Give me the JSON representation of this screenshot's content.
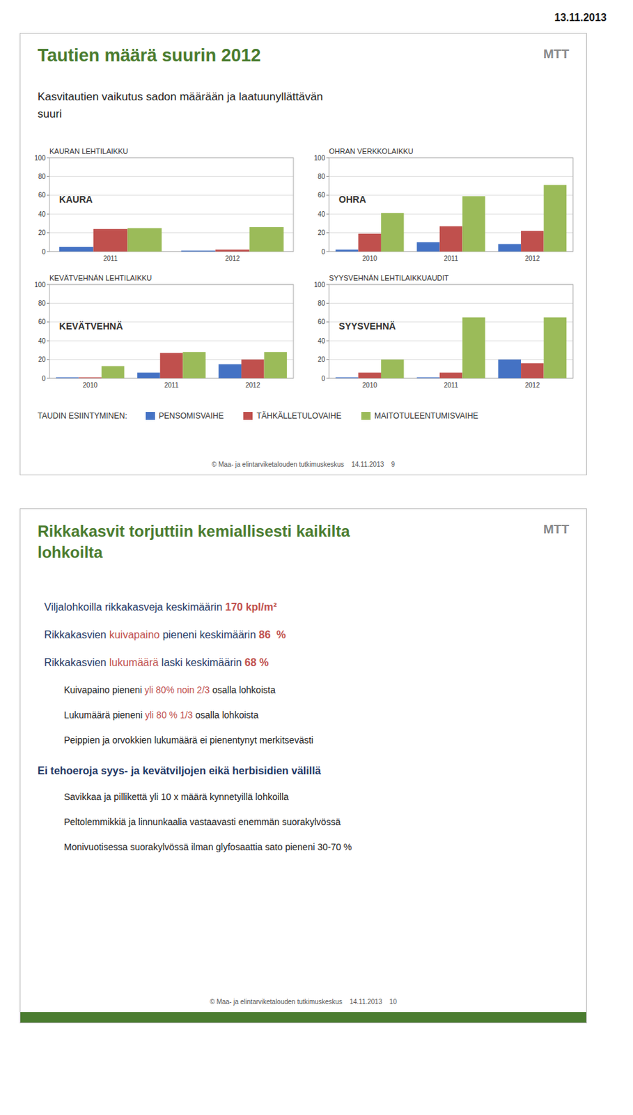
{
  "date": "13.11.2013",
  "slides": [
    {
      "logo": "MTT",
      "title": [
        "Tautien määrä suurin 2012"
      ],
      "subtitle": [
        "Kasvitautien vaikutus sadon määrään ja laatuunyllättävän",
        "suuri"
      ],
      "legend_title": "TAUDIN ESIINTYMINEN:",
      "footer": "© Maa- ja elintarviketalouden tutkimuskeskus    14.11.2013    9",
      "color": "#4a7c2f"
    },
    {
      "logo": "MTT",
      "title": [
        "Rikkakasvit torjuttiin kemiallisesti kaikilta",
        "lohkoilta"
      ],
      "bullets": [
        {
          "level": 1,
          "parts": [
            {
              "text": "Viljalohkoilla rikkakasveja keskimäärin ",
              "color": "#1f3864"
            },
            {
              "text": "170 kpl/m²",
              "color": "#c0504d",
              "bold": true
            }
          ]
        },
        {
          "level": 1,
          "parts": [
            {
              "text": "Rikkakasvien ",
              "color": "#1f3864"
            },
            {
              "text": "kuivapaino",
              "color": "#c0504d"
            },
            {
              "text": " pieneni keskimäärin ",
              "color": "#1f3864"
            },
            {
              "text": "86  %",
              "color": "#c0504d",
              "bold": true
            }
          ]
        },
        {
          "level": 1,
          "parts": [
            {
              "text": "Rikkakasvien ",
              "color": "#1f3864"
            },
            {
              "text": "lukumäärä",
              "color": "#c0504d"
            },
            {
              "text": " laski keskimäärin ",
              "color": "#1f3864"
            },
            {
              "text": "68 %",
              "color": "#c0504d",
              "bold": true
            }
          ]
        },
        {
          "level": 2,
          "parts": [
            {
              "text": "Kuivapaino pieneni ",
              "color": "#222222"
            },
            {
              "text": "yli 80% noin 2/3",
              "color": "#c0504d"
            },
            {
              "text": " osalla lohkoista",
              "color": "#222222"
            }
          ]
        },
        {
          "level": 2,
          "parts": [
            {
              "text": "Lukumäärä pieneni ",
              "color": "#222222"
            },
            {
              "text": "yli 80 % 1/3",
              "color": "#c0504d"
            },
            {
              "text": " osalla lohkoista",
              "color": "#222222"
            }
          ]
        },
        {
          "level": 2,
          "parts": [
            {
              "text": "Peippien ja orvokkien lukumäärä ei pienentynyt merkitsevästi",
              "color": "#222222"
            }
          ]
        },
        {
          "level": 0,
          "parts": [
            {
              "text": "Ei tehoeroja syys- ja kevätviljojen eikä herbisidien välillä",
              "color": "#1f3864",
              "bold": true
            }
          ]
        },
        {
          "level": 2,
          "parts": [
            {
              "text": "Savikkaa ja pillikettä yli 10 x määrä kynnetyillä lohkoilla",
              "color": "#222222"
            }
          ]
        },
        {
          "level": 2,
          "parts": [
            {
              "text": "Peltolemmikkiä ja linnunkaalia vastaavasti enemmän suorakylvössä",
              "color": "#222222"
            }
          ]
        },
        {
          "level": 2,
          "parts": [
            {
              "text": "Monivuotisessa suorakylvössä ilman glyfosaattia sato pieneni 30-70 %",
              "color": "#222222"
            }
          ]
        }
      ],
      "footer": "© Maa- ja elintarviketalouden tutkimuskeskus    14.11.2013    10",
      "color": "#4a7c2f"
    }
  ],
  "chart_data": [
    {
      "type": "bar",
      "title": "KAURAN LEHTILAIKKU",
      "annotations": [
        "KAURA"
      ],
      "categories": [
        "2011",
        "2012"
      ],
      "series": [
        {
          "name": "PENSOMISVAIHE",
          "color": "#4472c4",
          "values": [
            5,
            1
          ]
        },
        {
          "name": "TÄHKÄLLETULOVAIHE",
          "color": "#c0504d",
          "values": [
            24,
            2
          ]
        },
        {
          "name": "MAITOTULEENTUMISVAIHE",
          "color": "#9bbb59",
          "values": [
            25,
            26
          ]
        }
      ],
      "ylim": [
        0,
        100
      ],
      "yticks": [
        0,
        20,
        40,
        60,
        80,
        100
      ],
      "grid": true,
      "legend": "bottom"
    },
    {
      "type": "bar",
      "title": "OHRAN VERKKOLAIKKU",
      "annotations": [
        "OHRA"
      ],
      "categories": [
        "2010",
        "2011",
        "2012"
      ],
      "series": [
        {
          "name": "PENSOMISVAIHE",
          "color": "#4472c4",
          "values": [
            2,
            10,
            8
          ]
        },
        {
          "name": "TÄHKÄLLETULOVAIHE",
          "color": "#c0504d",
          "values": [
            19,
            27,
            22
          ]
        },
        {
          "name": "MAITOTULEENTUMISVAIHE",
          "color": "#9bbb59",
          "values": [
            41,
            59,
            71
          ]
        }
      ],
      "ylim": [
        0,
        100
      ],
      "yticks": [
        0,
        20,
        40,
        60,
        80,
        100
      ],
      "grid": true
    },
    {
      "type": "bar",
      "title": "KEVÄTVEHNÄN LEHTILAIKKU",
      "annotations": [
        "KEVÄTVEHNÄ"
      ],
      "categories": [
        "2010",
        "2011",
        "2012"
      ],
      "series": [
        {
          "name": "PENSOMISVAIHE",
          "color": "#4472c4",
          "values": [
            1,
            6,
            15
          ]
        },
        {
          "name": "TÄHKÄLLETULOVAIHE",
          "color": "#c0504d",
          "values": [
            1,
            27,
            20
          ]
        },
        {
          "name": "MAITOTULEENTUMISVAIHE",
          "color": "#9bbb59",
          "values": [
            13,
            28,
            28
          ]
        }
      ],
      "ylim": [
        0,
        100
      ],
      "yticks": [
        0,
        20,
        40,
        60,
        80,
        100
      ],
      "grid": true
    },
    {
      "type": "bar",
      "title": "SYYSVEHNÄN LEHTILAIKKUAUDIT",
      "annotations": [
        "SYYSVEHNÄ"
      ],
      "categories": [
        "2010",
        "2011",
        "2012"
      ],
      "series": [
        {
          "name": "PENSOMISVAIHE",
          "color": "#4472c4",
          "values": [
            1,
            1,
            20
          ]
        },
        {
          "name": "TÄHKÄLLETULOVAIHE",
          "color": "#c0504d",
          "values": [
            6,
            6,
            16
          ]
        },
        {
          "name": "MAITOTULEENTUMISVAIHE",
          "color": "#9bbb59",
          "values": [
            20,
            65,
            65
          ]
        }
      ],
      "ylim": [
        0,
        100
      ],
      "yticks": [
        0,
        20,
        40,
        60,
        80,
        100
      ],
      "grid": true
    }
  ]
}
